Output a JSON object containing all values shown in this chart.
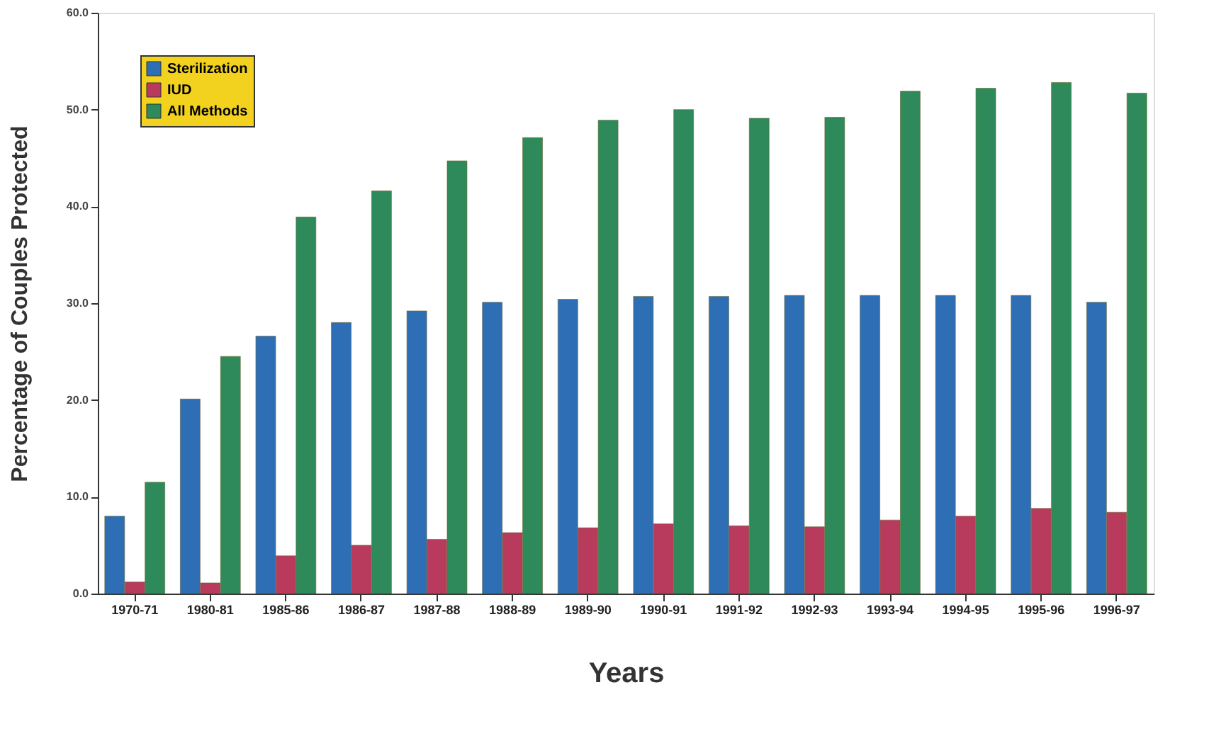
{
  "chart_data": {
    "type": "bar",
    "xlabel": "Years",
    "ylabel": "Percentage of Couples Protected",
    "categories": [
      "1970-71",
      "1980-81",
      "1985-86",
      "1986-87",
      "1987-88",
      "1988-89",
      "1989-90",
      "1990-91",
      "1991-92",
      "1992-93",
      "1993-94",
      "1994-95",
      "1995-96",
      "1996-97"
    ],
    "series": [
      {
        "name": "Sterilization",
        "color": "#2e6eb5",
        "values": [
          8.0,
          20.1,
          26.6,
          28.0,
          29.2,
          30.1,
          30.4,
          30.7,
          30.7,
          30.8,
          30.8,
          30.8,
          30.8,
          30.1
        ]
      },
      {
        "name": "IUD",
        "color": "#b83a5c",
        "values": [
          1.2,
          1.1,
          3.9,
          5.0,
          5.6,
          6.3,
          6.8,
          7.2,
          7.0,
          6.9,
          7.6,
          8.0,
          8.8,
          8.4
        ]
      },
      {
        "name": "All Methods",
        "color": "#2e8a5a",
        "values": [
          11.5,
          24.5,
          38.9,
          41.6,
          44.7,
          47.1,
          48.9,
          50.0,
          49.1,
          49.2,
          51.9,
          52.2,
          52.8,
          51.7
        ]
      }
    ],
    "ylim": [
      0,
      60
    ],
    "yticks": [
      {
        "value": 0,
        "label": "0.0"
      },
      {
        "value": 10,
        "label": "10.0"
      },
      {
        "value": 20,
        "label": "20.0"
      },
      {
        "value": 30,
        "label": "30.0"
      },
      {
        "value": 40,
        "label": "40.0"
      },
      {
        "value": 50,
        "label": "50.0"
      },
      {
        "value": 60,
        "label": "60.0"
      }
    ],
    "grid": false,
    "legend": "top left"
  }
}
